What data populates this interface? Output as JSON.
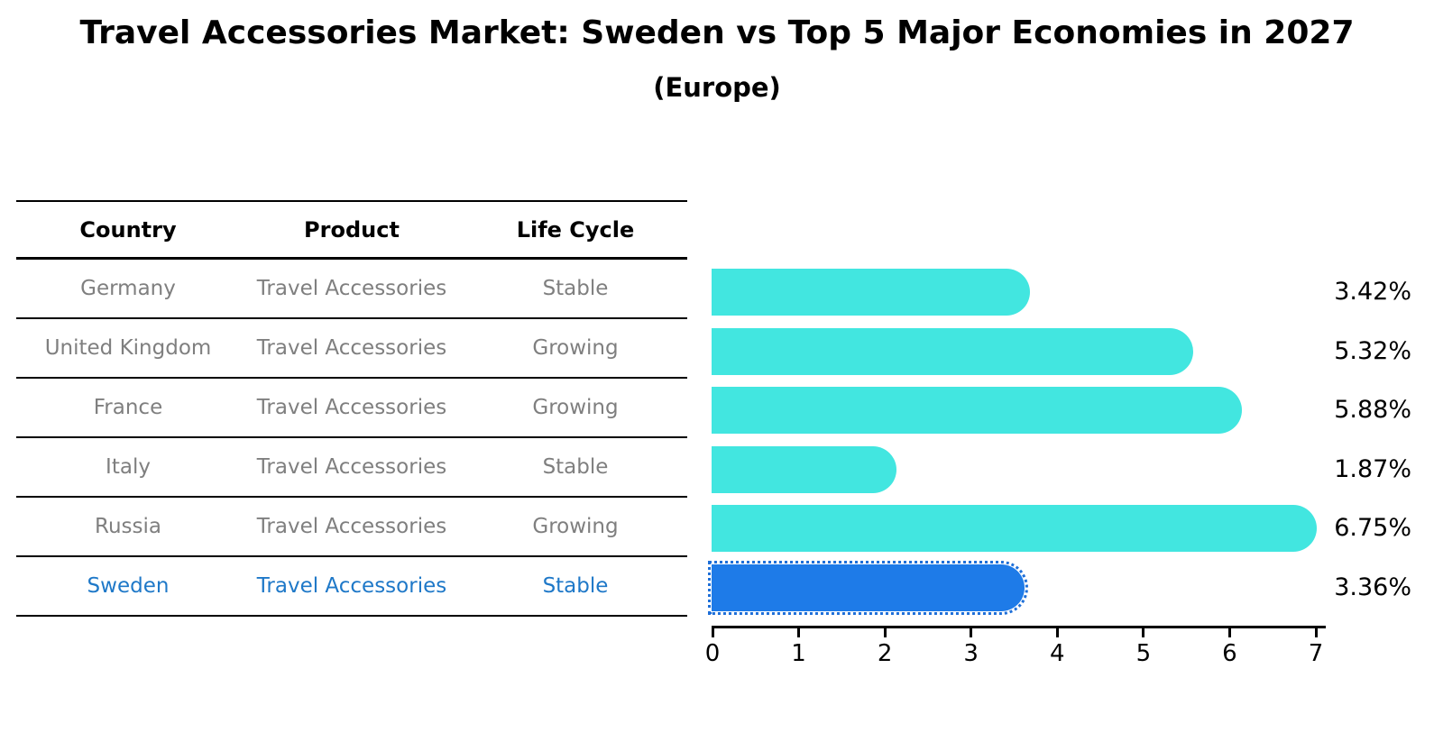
{
  "title": "Travel Accessories Market: Sweden vs Top 5 Major Economies in 2027",
  "subtitle": "(Europe)",
  "table": {
    "columns": [
      "Country",
      "Product",
      "Life Cycle"
    ],
    "rows": [
      {
        "country": "Germany",
        "product": "Travel Accessories",
        "life_cycle": "Stable",
        "highlight": false
      },
      {
        "country": "United Kingdom",
        "product": "Travel Accessories",
        "life_cycle": "Growing",
        "highlight": false
      },
      {
        "country": "France",
        "product": "Travel Accessories",
        "life_cycle": "Growing",
        "highlight": false
      },
      {
        "country": "Italy",
        "product": "Travel Accessories",
        "life_cycle": "Stable",
        "highlight": false
      },
      {
        "country": "Russia",
        "product": "Travel Accessories",
        "life_cycle": "Growing",
        "highlight": false
      },
      {
        "country": "Sweden",
        "product": "Travel Accessories",
        "life_cycle": "Stable",
        "highlight": true
      }
    ]
  },
  "chart_data": {
    "type": "bar",
    "orientation": "horizontal",
    "title": "Travel Accessories Market: Sweden vs Top 5 Major Economies in 2027",
    "subtitle": "(Europe)",
    "categories": [
      "Germany",
      "United Kingdom",
      "France",
      "Italy",
      "Russia",
      "Sweden"
    ],
    "values": [
      3.42,
      5.32,
      5.88,
      1.87,
      6.75,
      3.36
    ],
    "value_labels": [
      "3.42%",
      "5.32%",
      "5.88%",
      "1.87%",
      "6.75%",
      "3.36%"
    ],
    "xlabel": "",
    "ylabel": "",
    "xlim": [
      0,
      7
    ],
    "x_ticks": [
      "0",
      "1",
      "2",
      "3",
      "4",
      "5",
      "6",
      "7"
    ],
    "grid": false,
    "legend": "none",
    "bar_color": "#42e6e0",
    "highlight_index": 5,
    "highlight_bar_color": "#1e7be8",
    "highlight_text_color": "#1e78c8",
    "highlight_border_style": "dotted"
  }
}
